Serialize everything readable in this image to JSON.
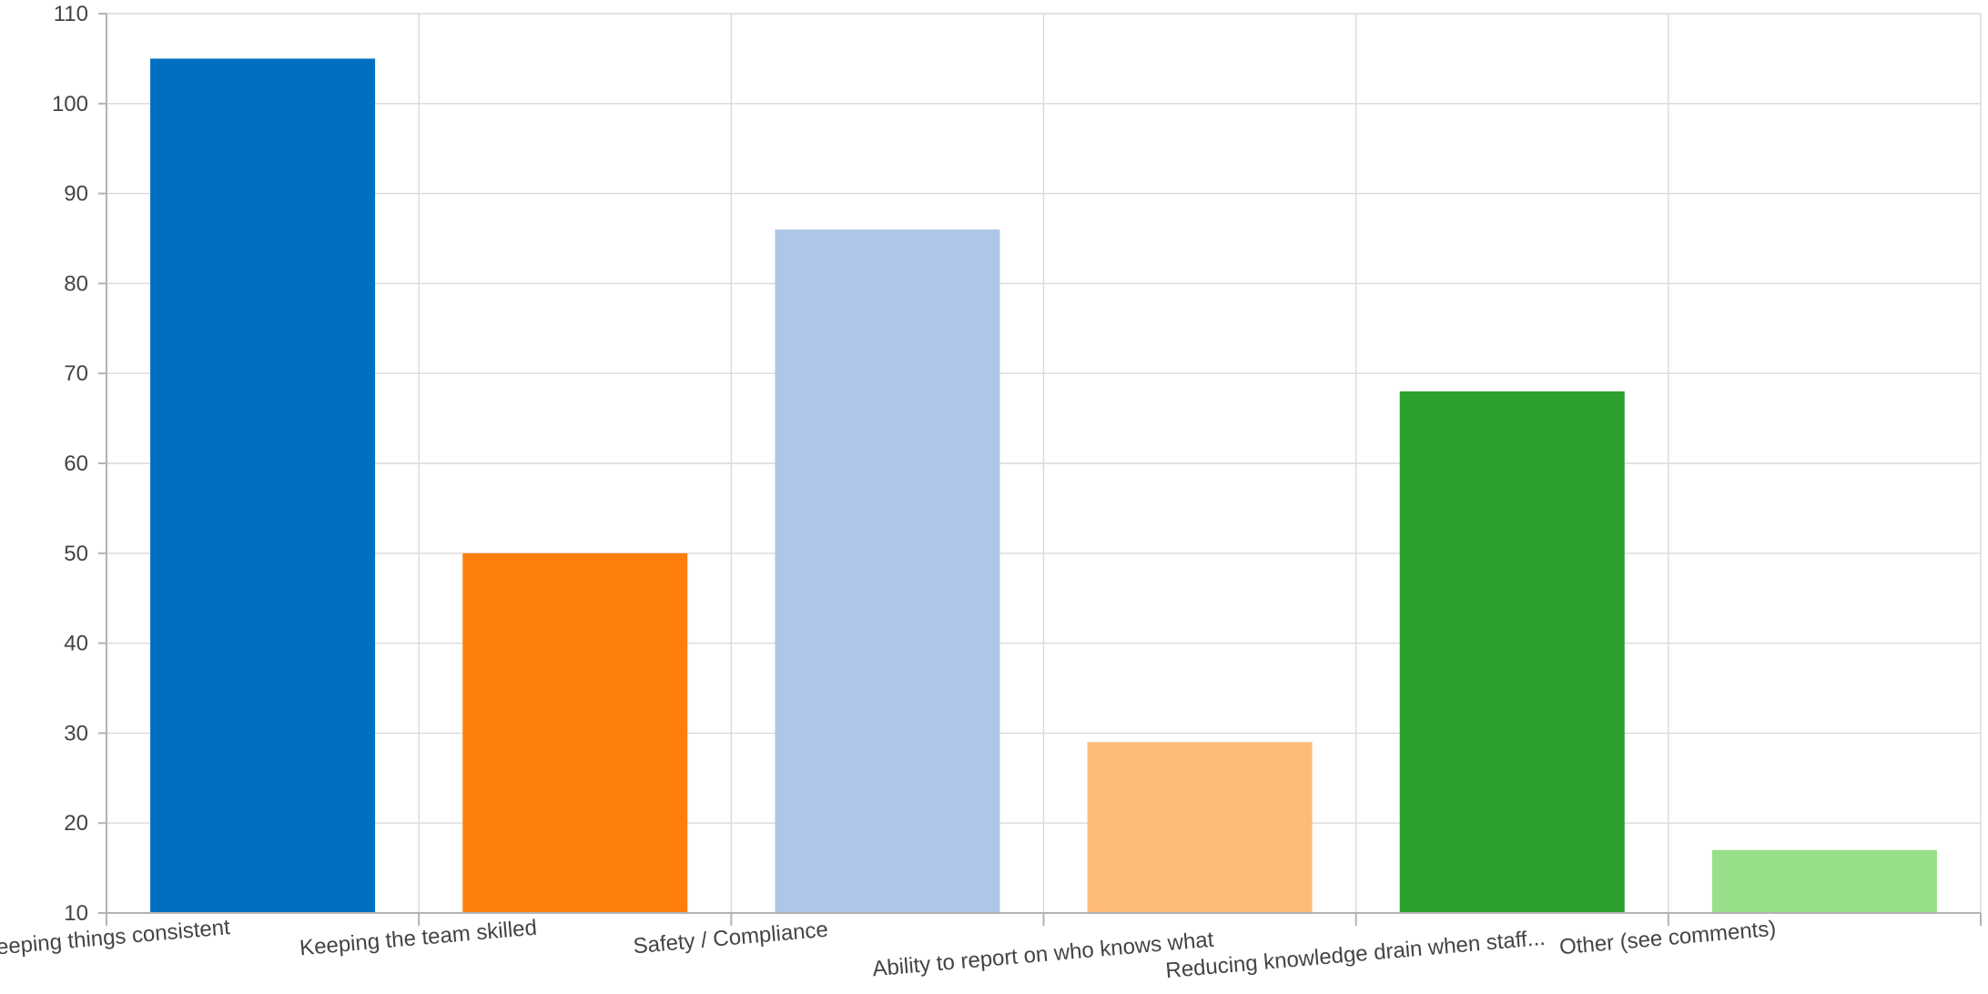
{
  "chart_data": {
    "type": "bar",
    "title": "",
    "xlabel": "",
    "ylabel": "",
    "categories": [
      "Keeping things consistent",
      "Keeping the team skilled",
      "Safety / Compliance",
      "Ability to report on who knows what",
      "Reducing knowledge drain when staff...",
      "Other (see comments)"
    ],
    "values": [
      105,
      50,
      86,
      29,
      68,
      17
    ],
    "colors": [
      "#006fc0",
      "#ff7f0e",
      "#aec7e8",
      "#ffbb78",
      "#2ca02c",
      "#98df8a"
    ],
    "ylim": [
      10,
      110
    ],
    "yticks": [
      10,
      20,
      30,
      40,
      50,
      60,
      70,
      80,
      90,
      100,
      110
    ],
    "grid": true,
    "legend": "none"
  }
}
